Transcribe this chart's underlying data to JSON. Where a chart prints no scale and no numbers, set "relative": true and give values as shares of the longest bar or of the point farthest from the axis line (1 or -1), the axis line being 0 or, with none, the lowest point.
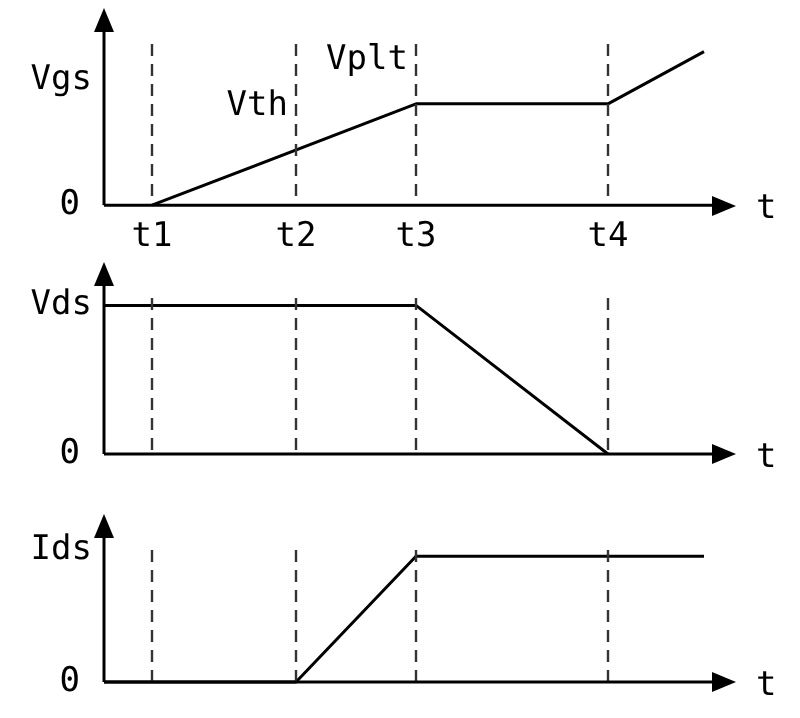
{
  "chart_data": [
    {
      "type": "line",
      "relative": true,
      "ylabel": "Vgs",
      "xlabel": "t",
      "color": "#000000",
      "categories": [
        null,
        null,
        "t1",
        null,
        null,
        null,
        null,
        null,
        "t2",
        null,
        null,
        null,
        null,
        "t3",
        null,
        null,
        null,
        null,
        null,
        null,
        null,
        "t4",
        null,
        null,
        null,
        null
      ],
      "values": [
        null,
        null,
        0,
        null,
        null,
        null,
        null,
        null,
        null,
        null,
        null,
        null,
        null,
        0.66,
        null,
        null,
        null,
        null,
        null,
        null,
        null,
        0.66,
        null,
        null,
        null,
        1
      ],
      "ref_lines": [
        {
          "axis": "x",
          "value": "t1",
          "line_style": "dashed"
        },
        {
          "axis": "x",
          "value": "t2",
          "line_style": "dashed"
        },
        {
          "axis": "x",
          "value": "t3",
          "line_style": "dashed"
        },
        {
          "axis": "x",
          "value": "t4",
          "line_style": "dashed"
        }
      ],
      "tick_labels": "x",
      "marker": "none",
      "line_style": "solid",
      "annotations": [
        "0",
        {
          "text": "Vth",
          "x": "t2",
          "y": 0.36
        },
        {
          "text": "Vplt",
          "x": "t3",
          "y": 0.66
        }
      ]
    },
    {
      "type": "line",
      "relative": true,
      "ylabel": "Vds",
      "xlabel": "t",
      "color": "#000000",
      "categories": [
        null,
        null,
        "t1",
        null,
        null,
        null,
        null,
        null,
        "t2",
        null,
        null,
        null,
        null,
        "t3",
        null,
        null,
        null,
        null,
        null,
        null,
        null,
        "t4",
        null,
        null,
        null,
        null
      ],
      "values": [
        1,
        null,
        null,
        null,
        null,
        null,
        null,
        null,
        null,
        null,
        null,
        null,
        null,
        1,
        null,
        null,
        null,
        null,
        null,
        null,
        null,
        0,
        null,
        null,
        null,
        null
      ],
      "ref_lines": [
        {
          "axis": "x",
          "value": "t1",
          "line_style": "dashed"
        },
        {
          "axis": "x",
          "value": "t2",
          "line_style": "dashed"
        },
        {
          "axis": "x",
          "value": "t3",
          "line_style": "dashed"
        },
        {
          "axis": "x",
          "value": "t4",
          "line_style": "dashed"
        }
      ],
      "tick_labels": false,
      "marker": "none",
      "line_style": "solid",
      "annotations": [
        "0"
      ]
    },
    {
      "type": "line",
      "relative": true,
      "ylabel": "Ids",
      "xlabel": "t",
      "color": "#000000",
      "categories": [
        null,
        null,
        "t1",
        null,
        null,
        null,
        null,
        null,
        "t2",
        null,
        null,
        null,
        null,
        "t3",
        null,
        null,
        null,
        null,
        null,
        null,
        null,
        "t4",
        null,
        null,
        null,
        null
      ],
      "values": [
        0,
        null,
        null,
        null,
        null,
        null,
        null,
        null,
        0,
        null,
        null,
        null,
        null,
        1,
        null,
        null,
        null,
        null,
        null,
        null,
        null,
        null,
        null,
        null,
        null,
        1
      ],
      "ref_lines": [
        {
          "axis": "x",
          "value": "t1",
          "line_style": "dashed"
        },
        {
          "axis": "x",
          "value": "t2",
          "line_style": "dashed"
        },
        {
          "axis": "x",
          "value": "t3",
          "line_style": "dashed"
        },
        {
          "axis": "x",
          "value": "t4",
          "line_style": "dashed"
        }
      ],
      "tick_labels": false,
      "marker": "none",
      "line_style": "solid",
      "annotations": [
        "0"
      ]
    }
  ]
}
